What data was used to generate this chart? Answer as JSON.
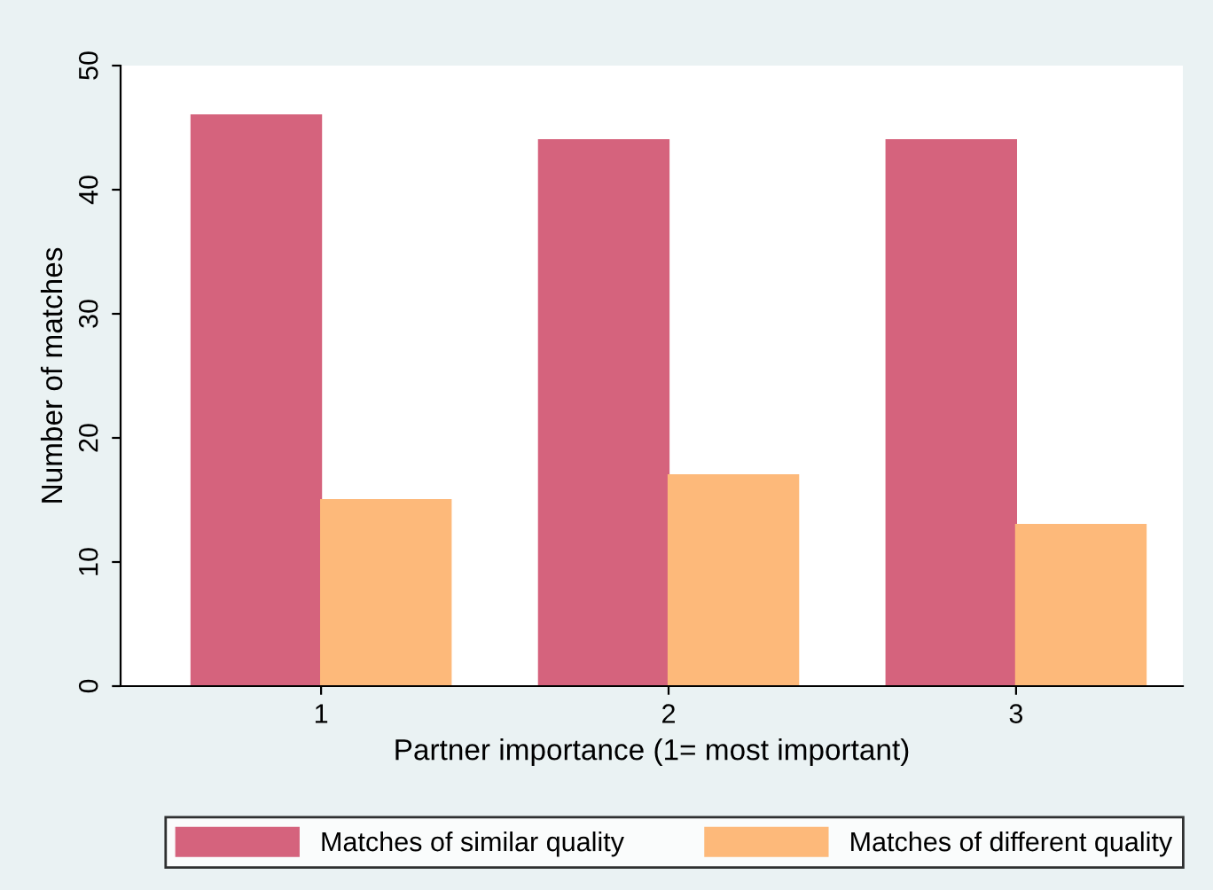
{
  "chart_data": {
    "type": "bar",
    "xlabel": "Partner importance (1= most important)",
    "ylabel": "Number of matches",
    "categories": [
      "1",
      "2",
      "3"
    ],
    "series": [
      {
        "name": "Matches of similar quality",
        "color": "#d5637d",
        "values": [
          46,
          44,
          44
        ]
      },
      {
        "name": "Matches of different quality",
        "color": "#fdb97a",
        "values": [
          15,
          17,
          13
        ]
      }
    ],
    "ylim": [
      0,
      50
    ],
    "yticks": [
      0,
      10,
      20,
      30,
      40,
      50
    ],
    "grid": false,
    "legend": "bottom"
  }
}
